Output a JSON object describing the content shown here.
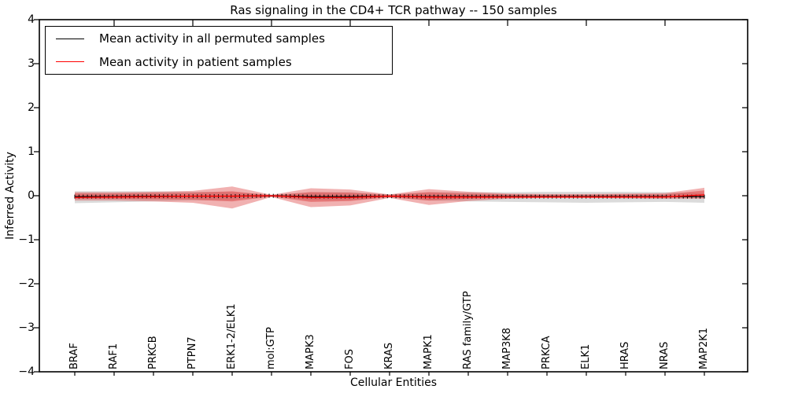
{
  "chart_data": {
    "type": "line",
    "title": "Ras signaling in the CD4+ TCR pathway -- 150 samples",
    "xlabel": "Cellular Entities",
    "ylabel": "Inferred Activity",
    "ylim": [
      -4,
      4
    ],
    "yticks": [
      4,
      3,
      2,
      1,
      0,
      -1,
      -2,
      -3,
      -4
    ],
    "n_samples": 150,
    "grid": false,
    "categories": [
      "BRAF",
      "RAF1",
      "PRKCB",
      "PTPN7",
      "ERK1-2/ELK1",
      "mol:GTP",
      "MAPK3",
      "FOS",
      "KRAS",
      "MAPK1",
      "RAS family/GTP",
      "MAP3K8",
      "PRKCA",
      "ELK1",
      "HRAS",
      "NRAS",
      "MAP2K1"
    ],
    "legend": {
      "position": "upper left",
      "items": [
        {
          "label": "Mean activity in all permuted samples",
          "color": "#000000"
        },
        {
          "label": "Mean activity in patient samples",
          "color": "#ff0000"
        }
      ]
    },
    "series": [
      {
        "name": "Mean activity in all permuted samples",
        "color": "#000000",
        "values": [
          -0.02,
          -0.02,
          -0.01,
          -0.01,
          -0.01,
          0.0,
          -0.02,
          -0.02,
          -0.01,
          -0.02,
          -0.02,
          -0.02,
          -0.02,
          -0.02,
          -0.02,
          -0.02,
          -0.02
        ]
      },
      {
        "name": "Mean activity in patient samples",
        "color": "#ff0000",
        "values": [
          -0.04,
          -0.03,
          -0.02,
          -0.01,
          -0.01,
          0.0,
          -0.04,
          -0.04,
          -0.01,
          -0.03,
          -0.03,
          -0.03,
          -0.03,
          -0.03,
          -0.03,
          -0.03,
          0.02
        ]
      }
    ],
    "bands": [
      {
        "name": "permuted-samples-range",
        "color": "#999999",
        "opacity": 0.35,
        "lower": [
          -0.17,
          -0.15,
          -0.13,
          -0.11,
          -0.1,
          -0.02,
          -0.1,
          -0.1,
          -0.04,
          -0.11,
          -0.13,
          -0.14,
          -0.15,
          -0.16,
          -0.15,
          -0.14,
          -0.16
        ],
        "upper": [
          0.1,
          0.1,
          0.1,
          0.09,
          0.08,
          0.02,
          0.08,
          0.08,
          0.03,
          0.08,
          0.08,
          0.08,
          0.09,
          0.09,
          0.09,
          0.08,
          0.06
        ]
      },
      {
        "name": "patient-samples-outer-spread",
        "color": "#dd4444",
        "opacity": 0.42,
        "lower": [
          -0.11,
          -0.11,
          -0.13,
          -0.16,
          -0.29,
          -0.03,
          -0.26,
          -0.22,
          -0.05,
          -0.21,
          -0.12,
          -0.07,
          -0.05,
          -0.05,
          -0.06,
          -0.07,
          -0.07
        ],
        "upper": [
          0.08,
          0.08,
          0.09,
          0.11,
          0.21,
          0.02,
          0.17,
          0.14,
          0.03,
          0.15,
          0.09,
          0.05,
          0.04,
          0.04,
          0.05,
          0.06,
          0.18
        ]
      },
      {
        "name": "patient-samples-inner-spread",
        "color": "#dd4444",
        "opacity": 0.5,
        "lower": [
          -0.07,
          -0.07,
          -0.08,
          -0.09,
          -0.13,
          -0.02,
          -0.14,
          -0.12,
          -0.03,
          -0.11,
          -0.07,
          -0.04,
          -0.03,
          -0.03,
          -0.03,
          -0.04,
          -0.04
        ],
        "upper": [
          0.05,
          0.05,
          0.06,
          0.07,
          0.1,
          0.01,
          0.08,
          0.07,
          0.02,
          0.08,
          0.05,
          0.03,
          0.02,
          0.02,
          0.03,
          0.03,
          0.12
        ]
      }
    ]
  }
}
